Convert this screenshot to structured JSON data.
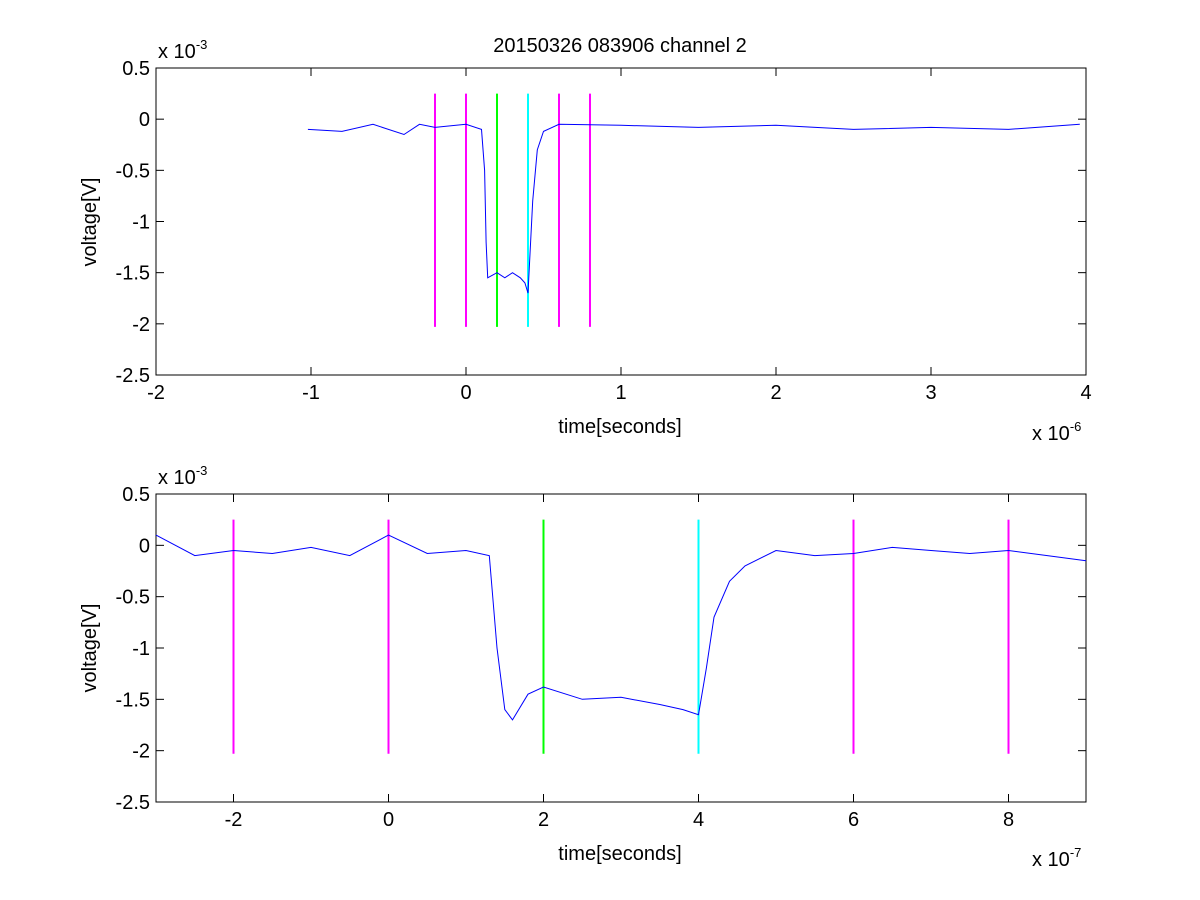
{
  "figure": {
    "title": "20150326 083906 channel 2"
  },
  "colors": {
    "signal": "#0000ff",
    "marker": "#ff00ff",
    "start": "#00ff00",
    "end": "#00ffff"
  },
  "chart_data": [
    {
      "type": "line",
      "title": "20150326 083906 channel 2",
      "xlabel": "time[seconds]",
      "ylabel": "voltage[V]",
      "x_exponent_label": "x 10",
      "x_exponent": "-6",
      "y_exponent_label": "x 10",
      "y_exponent": "-3",
      "xlim": [
        -2,
        4
      ],
      "ylim": [
        -2.5,
        0.5
      ],
      "xticks": [
        -2,
        -1,
        0,
        1,
        2,
        3,
        4
      ],
      "xtick_labels": [
        "-2",
        "-1",
        "0",
        "1",
        "2",
        "3",
        "4"
      ],
      "yticks": [
        0.5,
        0,
        -0.5,
        -1,
        -1.5,
        -2,
        -2.5
      ],
      "ytick_labels": [
        "0.5",
        "0",
        "-0.5",
        "-1",
        "-1.5",
        "-2",
        "-2.5"
      ],
      "grid": false,
      "series": [
        {
          "color": "#0000ff",
          "x": [
            -1.02,
            -0.8,
            -0.6,
            -0.4,
            -0.3,
            -0.2,
            0,
            0.1,
            0.12,
            0.13,
            0.14,
            0.2,
            0.25,
            0.3,
            0.35,
            0.38,
            0.4,
            0.43,
            0.46,
            0.5,
            0.6,
            1,
            1.5,
            2,
            2.5,
            3,
            3.5,
            3.96
          ],
          "y": [
            -0.1,
            -0.12,
            -0.05,
            -0.15,
            -0.05,
            -0.08,
            -0.05,
            -0.1,
            -0.5,
            -1.2,
            -1.55,
            -1.5,
            -1.55,
            -1.5,
            -1.55,
            -1.6,
            -1.7,
            -0.8,
            -0.3,
            -0.12,
            -0.05,
            -0.06,
            -0.08,
            -0.06,
            -0.1,
            -0.08,
            -0.1,
            -0.05
          ]
        }
      ],
      "vlines": [
        {
          "x": -0.2,
          "ymin": -2.03,
          "ymax": 0.25,
          "color": "#ff00ff"
        },
        {
          "x": 0,
          "ymin": -2.03,
          "ymax": 0.25,
          "color": "#ff00ff"
        },
        {
          "x": 0.2,
          "ymin": -2.03,
          "ymax": 0.25,
          "color": "#00ff00"
        },
        {
          "x": 0.4,
          "ymin": -2.03,
          "ymax": 0.25,
          "color": "#00ffff"
        },
        {
          "x": 0.6,
          "ymin": -2.03,
          "ymax": 0.25,
          "color": "#ff00ff"
        },
        {
          "x": 0.8,
          "ymin": -2.03,
          "ymax": 0.25,
          "color": "#ff00ff"
        }
      ]
    },
    {
      "type": "line",
      "xlabel": "time[seconds]",
      "ylabel": "voltage[V]",
      "x_exponent_label": "x 10",
      "x_exponent": "-7",
      "y_exponent_label": "x 10",
      "y_exponent": "-3",
      "xlim": [
        -3,
        9
      ],
      "ylim": [
        -2.5,
        0.5
      ],
      "xticks": [
        -2,
        0,
        2,
        4,
        6,
        8
      ],
      "xtick_labels": [
        "-2",
        "0",
        "2",
        "4",
        "6",
        "8"
      ],
      "yticks": [
        0.5,
        0,
        -0.5,
        -1,
        -1.5,
        -2,
        -2.5
      ],
      "ytick_labels": [
        "0.5",
        "0",
        "-0.5",
        "-1",
        "-1.5",
        "-2",
        "-2.5"
      ],
      "grid": false,
      "series": [
        {
          "color": "#0000ff",
          "x": [
            -3,
            -2.5,
            -2,
            -1.5,
            -1,
            -0.5,
            0,
            0.5,
            1,
            1.3,
            1.4,
            1.5,
            1.6,
            1.8,
            2,
            2.5,
            3,
            3.5,
            3.8,
            4,
            4.1,
            4.2,
            4.4,
            4.6,
            5,
            5.5,
            6,
            6.5,
            7,
            7.5,
            8,
            8.5,
            9
          ],
          "y": [
            0.1,
            -0.1,
            -0.05,
            -0.08,
            -0.02,
            -0.1,
            0.1,
            -0.08,
            -0.05,
            -0.1,
            -1.0,
            -1.6,
            -1.7,
            -1.45,
            -1.38,
            -1.5,
            -1.48,
            -1.55,
            -1.6,
            -1.65,
            -1.2,
            -0.7,
            -0.35,
            -0.2,
            -0.05,
            -0.1,
            -0.08,
            -0.02,
            -0.05,
            -0.08,
            -0.05,
            -0.1,
            -0.15
          ]
        }
      ],
      "vlines": [
        {
          "x": -2,
          "ymin": -2.03,
          "ymax": 0.25,
          "color": "#ff00ff"
        },
        {
          "x": 0,
          "ymin": -2.03,
          "ymax": 0.25,
          "color": "#ff00ff"
        },
        {
          "x": 2,
          "ymin": -2.03,
          "ymax": 0.25,
          "color": "#00ff00"
        },
        {
          "x": 4,
          "ymin": -2.03,
          "ymax": 0.25,
          "color": "#00ffff"
        },
        {
          "x": 6,
          "ymin": -2.03,
          "ymax": 0.25,
          "color": "#ff00ff"
        },
        {
          "x": 8,
          "ymin": -2.03,
          "ymax": 0.25,
          "color": "#ff00ff"
        }
      ]
    }
  ]
}
